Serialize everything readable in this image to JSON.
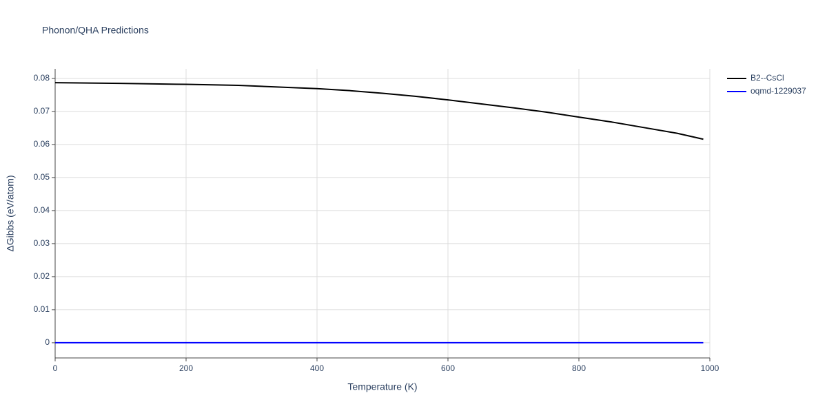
{
  "chart_data": {
    "type": "line",
    "title": "Phonon/QHA Predictions",
    "x_label": "Temperature (K)",
    "y_label": "ΔGibbs (eV/atom)",
    "xlim": [
      0,
      1000
    ],
    "xticks": [
      0,
      200,
      400,
      600,
      800,
      1000
    ],
    "ylim": [
      -0.0046,
      0.0829
    ],
    "yticks": [
      0,
      0.01,
      0.02,
      0.03,
      0.04,
      0.05,
      0.06,
      0.07,
      0.08
    ],
    "grid": true,
    "legend": "right",
    "series": [
      {
        "name": "B2--CsCl",
        "color": "#000000",
        "x": [
          0,
          100,
          200,
          280,
          400,
          450,
          500,
          550,
          600,
          650,
          700,
          750,
          800,
          850,
          900,
          950,
          990
        ],
        "values": [
          0.0787,
          0.0785,
          0.0782,
          0.0779,
          0.0769,
          0.0763,
          0.0755,
          0.0746,
          0.0735,
          0.0723,
          0.0711,
          0.0698,
          0.0683,
          0.0668,
          0.0651,
          0.0634,
          0.0616
        ]
      },
      {
        "name": "oqmd-1229037",
        "color": "#0000ff",
        "x": [
          0,
          990
        ],
        "values": [
          0,
          0
        ]
      }
    ]
  }
}
